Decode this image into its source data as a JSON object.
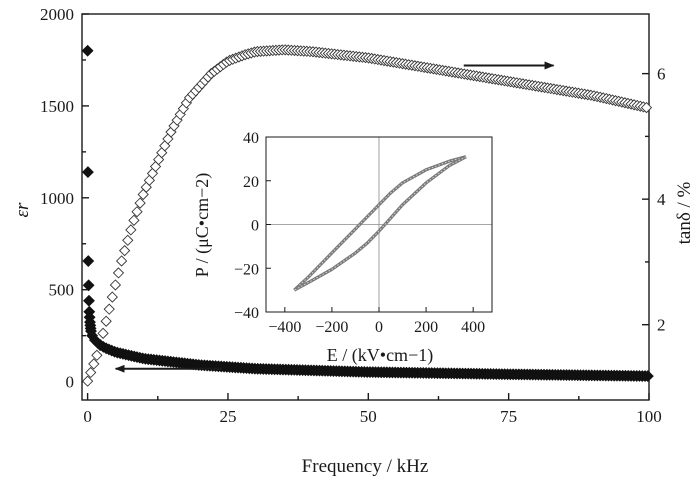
{
  "chart_data": [
    {
      "type": "scatter",
      "xlabel": "Frequency / kHz",
      "ylabel_left": "εr",
      "ylabel_right": "tanδ / %",
      "xlim": [
        -1,
        100
      ],
      "ylim_left": [
        -100,
        2000
      ],
      "ylim_right": [
        0.8,
        6.95
      ],
      "x_ticks": [
        0,
        25,
        50,
        75,
        100
      ],
      "y_left_ticks": [
        0,
        500,
        1000,
        1500,
        2000
      ],
      "y_right_ticks": [
        2,
        4,
        6
      ],
      "series": [
        {
          "axis": "left",
          "marker": "filled-diamond",
          "x": [
            0,
            0.1,
            0.2,
            0.3,
            0.4,
            0.5,
            0.6,
            0.8,
            1,
            1.5,
            2,
            3,
            5,
            10,
            20,
            30,
            50,
            75,
            100
          ],
          "values": [
            1800,
            700,
            480,
            380,
            330,
            300,
            275,
            250,
            235,
            220,
            205,
            185,
            160,
            125,
            90,
            70,
            52,
            40,
            30
          ]
        },
        {
          "axis": "right",
          "marker": "open-diamond",
          "x": [
            0,
            2,
            4,
            6,
            8,
            10,
            12,
            15,
            18,
            20,
            22,
            25,
            28,
            30,
            35,
            40,
            50,
            60,
            70,
            80,
            90,
            100
          ],
          "values": [
            1.1,
            1.6,
            2.3,
            3.0,
            3.6,
            4.1,
            4.5,
            5.1,
            5.6,
            5.8,
            6.0,
            6.2,
            6.3,
            6.35,
            6.38,
            6.35,
            6.25,
            6.1,
            5.95,
            5.8,
            5.65,
            5.45
          ]
        }
      ],
      "arrows": [
        {
          "points_to": "right-axis",
          "from_x": 67,
          "to_x": 83,
          "at": 6.13
        },
        {
          "points_to": "left-axis",
          "from_x": 24,
          "to_x": 5,
          "at": 70
        }
      ]
    },
    {
      "type": "line",
      "role": "inset",
      "xlabel": "E / (kV•cm−1)",
      "ylabel": "P / (μC•cm−2)",
      "xlim": [
        -480,
        480
      ],
      "ylim": [
        -40,
        40
      ],
      "x_ticks": [
        -400,
        -200,
        0,
        200,
        400
      ],
      "y_ticks": [
        -40,
        -20,
        0,
        20,
        40
      ],
      "series": [
        {
          "name": "upper-branch",
          "x": [
            -360,
            -300,
            -200,
            -100,
            -50,
            0,
            50,
            100,
            200,
            300,
            370
          ],
          "values": [
            -30,
            -24,
            -13,
            -2,
            3.5,
            9,
            14.5,
            19,
            25,
            29,
            31
          ]
        },
        {
          "name": "lower-branch",
          "x": [
            370,
            300,
            200,
            100,
            50,
            0,
            -50,
            -100,
            -200,
            -300,
            -360
          ],
          "values": [
            31,
            27,
            19,
            9,
            3,
            -3,
            -8.5,
            -13,
            -20.5,
            -26.5,
            -30
          ]
        }
      ]
    }
  ]
}
